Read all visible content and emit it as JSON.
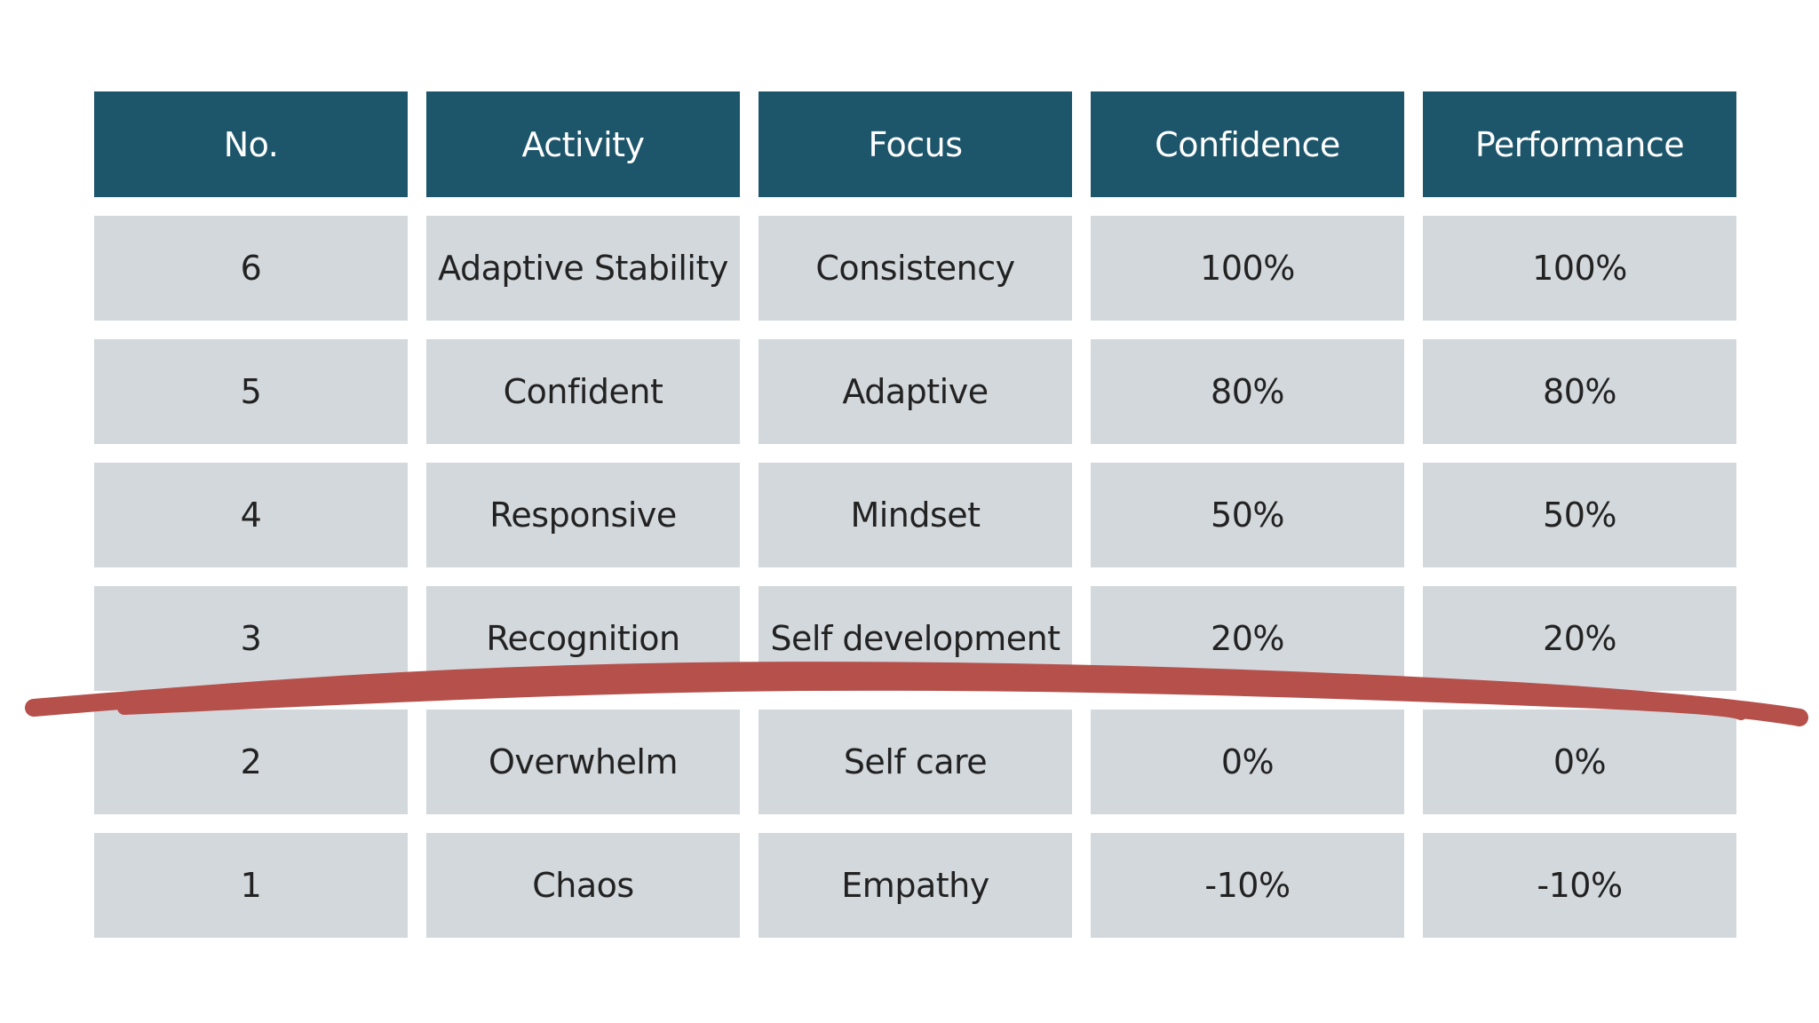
{
  "table": {
    "headers": [
      "No.",
      "Activity",
      "Focus",
      "Confidence",
      "Performance"
    ],
    "rows": [
      [
        "6",
        "Adaptive Stability",
        "Consistency",
        "100%",
        "100%"
      ],
      [
        "5",
        "Confident",
        "Adaptive",
        "80%",
        "80%"
      ],
      [
        "4",
        "Responsive",
        "Mindset",
        "50%",
        "50%"
      ],
      [
        "3",
        "Recognition",
        "Self development",
        "20%",
        "20%"
      ],
      [
        "2",
        "Overwhelm",
        "Self care",
        "0%",
        "0%"
      ],
      [
        "1",
        "Chaos",
        "Empathy",
        "-10%",
        "-10%"
      ]
    ]
  },
  "colors": {
    "header_bg": "#1d556a",
    "cell_bg": "#d3d8dc",
    "strike_line": "#b5504b"
  }
}
